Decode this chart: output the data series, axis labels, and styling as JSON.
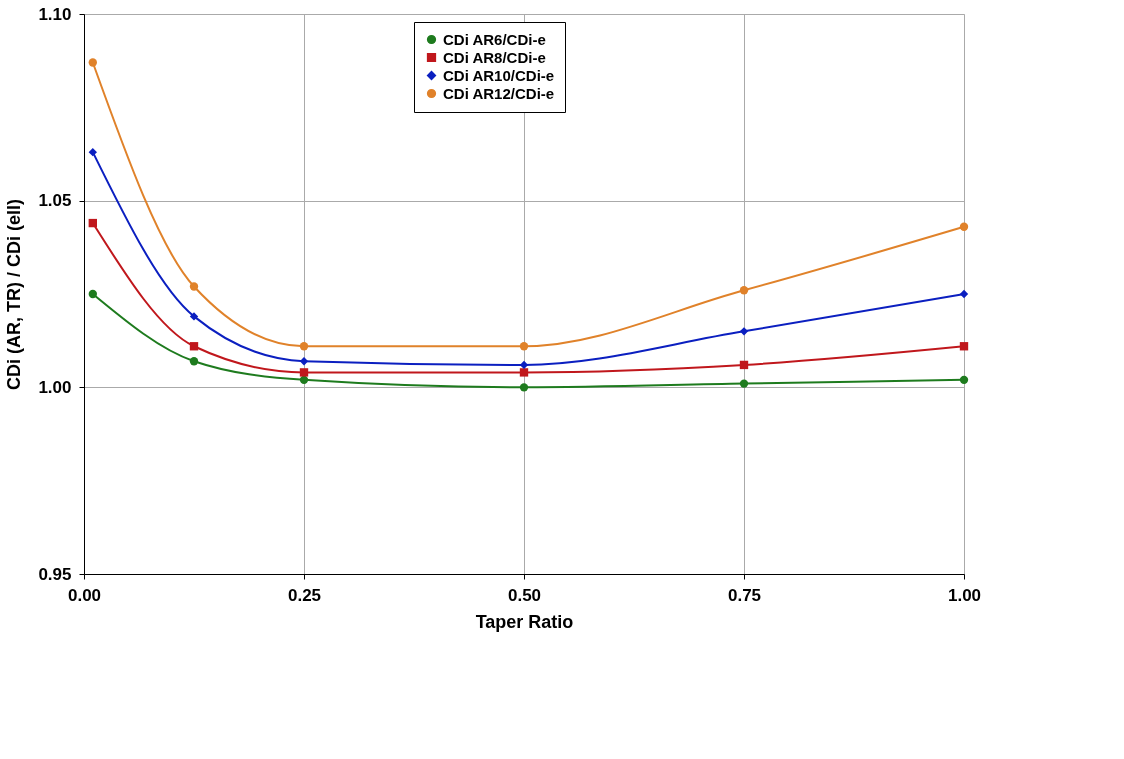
{
  "chart_data": {
    "type": "line",
    "xlabel": "Taper Ratio",
    "ylabel": "CDi (AR, TR) / CDi (ell)",
    "x": [
      0.01,
      0.125,
      0.25,
      0.5,
      0.75,
      1.0
    ],
    "series": [
      {
        "name": "CDi AR6/CDi-e",
        "color": "#1e7b1e",
        "marker": "circle",
        "values": [
          1.025,
          1.007,
          1.002,
          1.0,
          1.001,
          1.002
        ]
      },
      {
        "name": "CDi AR8/CDi-e",
        "color": "#c0171c",
        "marker": "square",
        "values": [
          1.044,
          1.011,
          1.004,
          1.004,
          1.006,
          1.011
        ]
      },
      {
        "name": "CDi AR10/CDi-e",
        "color": "#0b1fc0",
        "marker": "diamond",
        "values": [
          1.063,
          1.019,
          1.007,
          1.006,
          1.015,
          1.025
        ]
      },
      {
        "name": "CDi AR12/CDi-e",
        "color": "#e0822a",
        "marker": "circle",
        "values": [
          1.087,
          1.027,
          1.011,
          1.011,
          1.026,
          1.043
        ]
      }
    ],
    "xlim": [
      0,
      1
    ],
    "xticks": [
      {
        "value": 0,
        "label": "0.00"
      },
      {
        "value": 0.25,
        "label": "0.25"
      },
      {
        "value": 0.5,
        "label": "0.50"
      },
      {
        "value": 0.75,
        "label": "0.75"
      },
      {
        "value": 1,
        "label": "1.00"
      }
    ],
    "ylim": [
      0.95,
      1.1
    ],
    "yticks": [
      {
        "value": 0.95,
        "label": "0.95"
      },
      {
        "value": 1.0,
        "label": "1.00"
      },
      {
        "value": 1.05,
        "label": "1.05"
      },
      {
        "value": 1.1,
        "label": "1.10"
      }
    ],
    "grid": true,
    "legend": "top",
    "line_style": "solid"
  }
}
